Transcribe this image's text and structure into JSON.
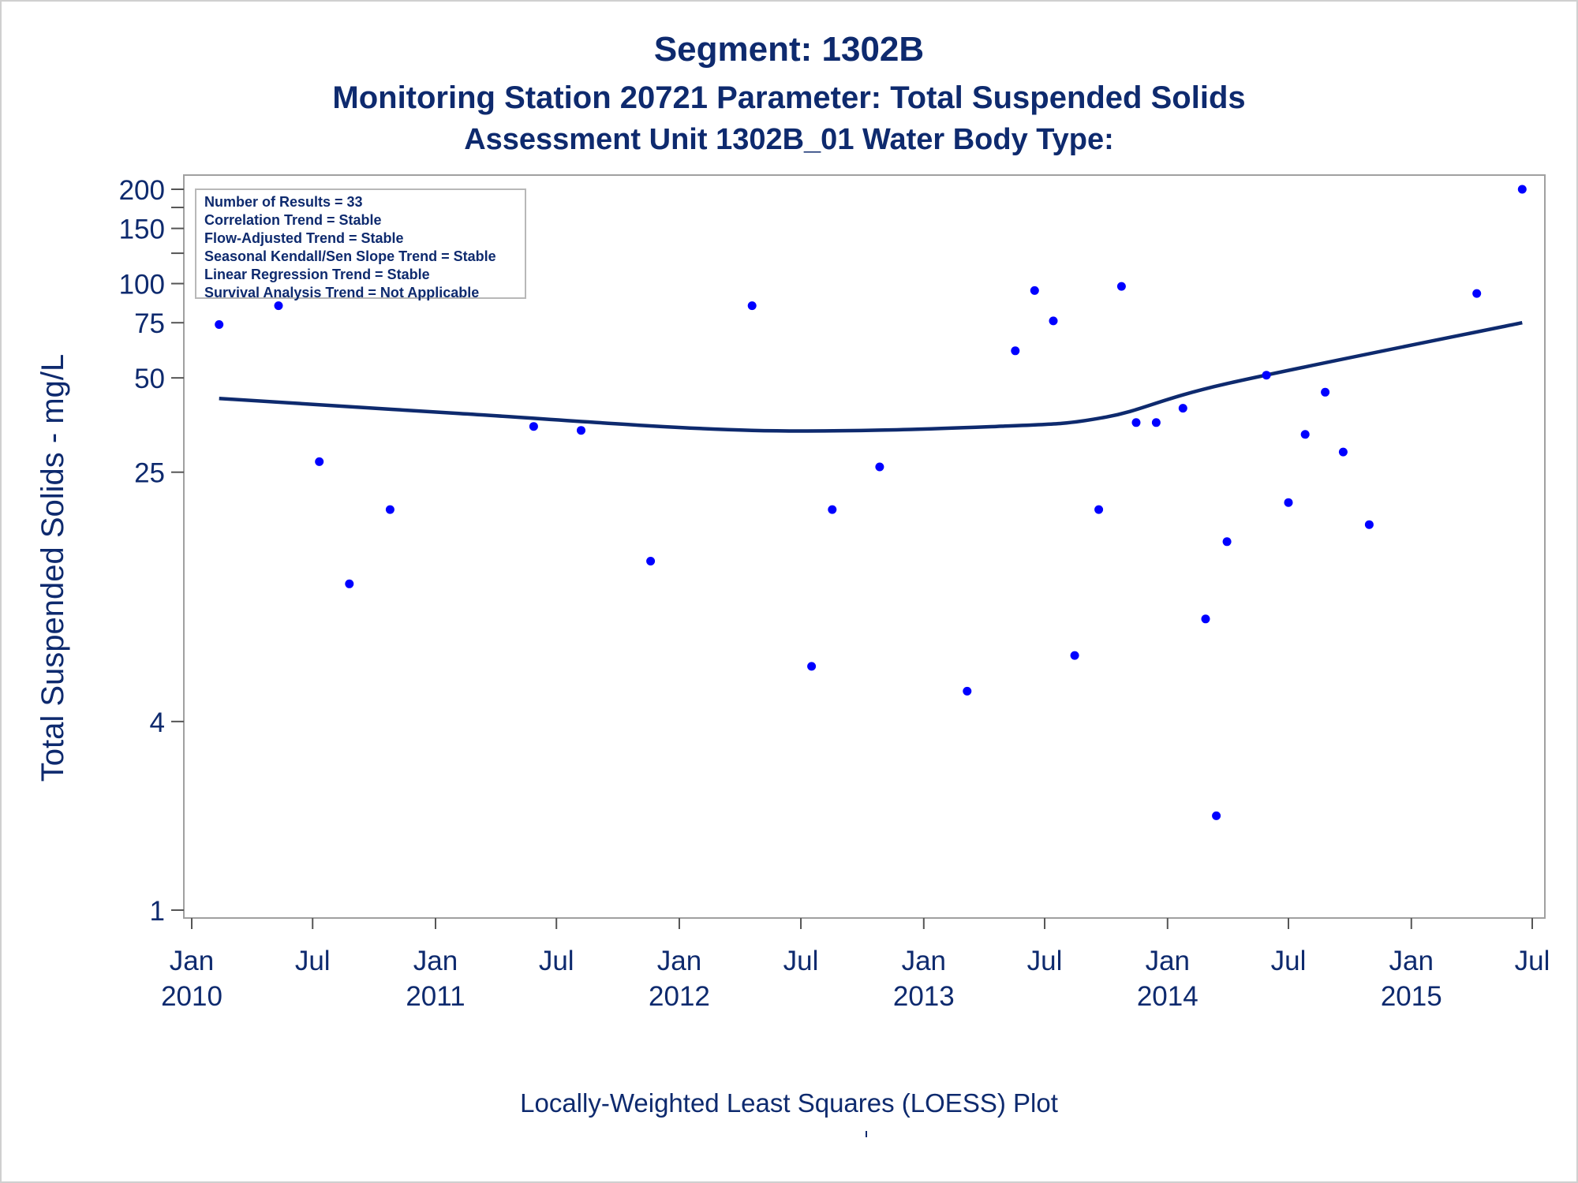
{
  "titles": {
    "line1": "Segment: 1302B",
    "line2": "Monitoring Station 20721 Parameter: Total Suspended Solids",
    "line3": "Assessment Unit 1302B_01   Water Body Type:"
  },
  "stats_box": {
    "lines": [
      "Number of Results = 33",
      "Correlation Trend = Stable",
      "Flow-Adjusted Trend = Stable",
      "Seasonal Kendall/Sen Slope Trend = Stable",
      "Linear Regression Trend = Stable",
      "Survival Analysis Trend = Not Applicable"
    ]
  },
  "footnote": "Locally-Weighted Least Squares (LOESS) Plot",
  "colors": {
    "text": "#0e2a6e",
    "marker": "#0000ff",
    "loess_line": "#0e2a6e",
    "frame": "#a0a0a0"
  },
  "chart_data": {
    "type": "scatter",
    "title": "",
    "xlabel": "",
    "ylabel": "Total Suspended Solids - mg/L",
    "y_scale": "log",
    "ylim": [
      1,
      200
    ],
    "y_ticks": [
      1,
      4,
      25,
      50,
      75,
      100,
      150,
      200
    ],
    "y_minor_ticks": [
      125,
      175
    ],
    "xlim": [
      "2010-01-01",
      "2015-07-01"
    ],
    "x_ticks": [
      {
        "date": "2010-01-01",
        "label1": "Jan",
        "label2": "2010"
      },
      {
        "date": "2010-07-01",
        "label1": "Jul",
        "label2": ""
      },
      {
        "date": "2011-01-01",
        "label1": "Jan",
        "label2": "2011"
      },
      {
        "date": "2011-07-01",
        "label1": "Jul",
        "label2": ""
      },
      {
        "date": "2012-01-01",
        "label1": "Jan",
        "label2": "2012"
      },
      {
        "date": "2012-07-01",
        "label1": "Jul",
        "label2": ""
      },
      {
        "date": "2013-01-01",
        "label1": "Jan",
        "label2": "2013"
      },
      {
        "date": "2013-07-01",
        "label1": "Jul",
        "label2": ""
      },
      {
        "date": "2014-01-01",
        "label1": "Jan",
        "label2": "2014"
      },
      {
        "date": "2014-07-01",
        "label1": "Jul",
        "label2": ""
      },
      {
        "date": "2015-01-01",
        "label1": "Jan",
        "label2": "2015"
      },
      {
        "date": "2015-07-01",
        "label1": "Jul",
        "label2": ""
      }
    ],
    "grid": false,
    "series": [
      {
        "type": "scatter",
        "points": [
          {
            "x": "2010-02-11",
            "y": 74
          },
          {
            "x": "2010-05-11",
            "y": 85
          },
          {
            "x": "2010-07-11",
            "y": 27
          },
          {
            "x": "2010-08-25",
            "y": 11
          },
          {
            "x": "2010-10-25",
            "y": 19
          },
          {
            "x": "2011-05-28",
            "y": 35
          },
          {
            "x": "2011-08-07",
            "y": 34
          },
          {
            "x": "2011-11-19",
            "y": 13
          },
          {
            "x": "2012-04-19",
            "y": 85
          },
          {
            "x": "2012-07-17",
            "y": 6
          },
          {
            "x": "2012-08-17",
            "y": 19
          },
          {
            "x": "2012-10-27",
            "y": 26
          },
          {
            "x": "2013-03-07",
            "y": 5
          },
          {
            "x": "2013-05-18",
            "y": 61
          },
          {
            "x": "2013-06-16",
            "y": 95
          },
          {
            "x": "2013-07-14",
            "y": 76
          },
          {
            "x": "2013-08-15",
            "y": 6.5
          },
          {
            "x": "2013-09-20",
            "y": 19
          },
          {
            "x": "2013-10-24",
            "y": 98
          },
          {
            "x": "2013-11-15",
            "y": 36
          },
          {
            "x": "2013-12-15",
            "y": 36
          },
          {
            "x": "2014-01-24",
            "y": 40
          },
          {
            "x": "2014-02-27",
            "y": 8.5
          },
          {
            "x": "2014-03-15",
            "y": 2
          },
          {
            "x": "2014-03-31",
            "y": 15
          },
          {
            "x": "2014-05-29",
            "y": 51
          },
          {
            "x": "2014-07-01",
            "y": 20
          },
          {
            "x": "2014-07-26",
            "y": 33
          },
          {
            "x": "2014-08-25",
            "y": 45
          },
          {
            "x": "2014-09-21",
            "y": 29
          },
          {
            "x": "2014-10-30",
            "y": 17
          },
          {
            "x": "2015-04-09",
            "y": 93
          },
          {
            "x": "2015-06-16",
            "y": 200
          }
        ]
      },
      {
        "type": "line",
        "points": [
          {
            "x": "2010-02-11",
            "y": 43
          },
          {
            "x": "2011-02-05",
            "y": 38.5
          },
          {
            "x": "2012-04-19",
            "y": 34
          },
          {
            "x": "2013-04-20",
            "y": 35
          },
          {
            "x": "2013-10-01",
            "y": 37.5
          },
          {
            "x": "2014-04-01",
            "y": 48
          },
          {
            "x": "2015-06-16",
            "y": 75
          }
        ]
      }
    ]
  }
}
